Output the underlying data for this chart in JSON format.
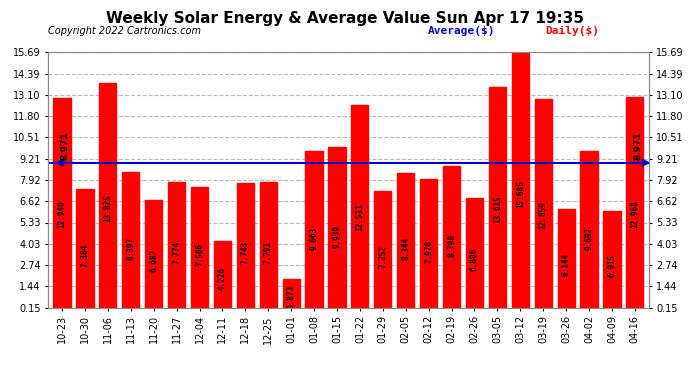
{
  "title": "Weekly Solar Energy & Average Value Sun Apr 17 19:35",
  "copyright": "Copyright 2022 Cartronics.com",
  "categories": [
    "10-23",
    "10-30",
    "11-06",
    "11-13",
    "11-20",
    "11-27",
    "12-04",
    "12-11",
    "12-18",
    "12-25",
    "01-01",
    "01-08",
    "01-15",
    "01-22",
    "01-29",
    "02-05",
    "02-12",
    "02-19",
    "02-26",
    "03-05",
    "03-12",
    "03-19",
    "03-26",
    "04-02",
    "04-09",
    "04-16"
  ],
  "values": [
    12.94,
    7.384,
    13.825,
    8.397,
    6.687,
    7.774,
    7.506,
    4.226,
    7.743,
    7.791,
    1.873,
    9.663,
    9.939,
    12.511,
    7.252,
    8.344,
    7.978,
    8.79,
    6.806,
    13.615,
    15.685,
    12.859,
    6.144,
    9.692,
    6.015,
    12.968
  ],
  "average": 8.971,
  "bar_color": "#ff0000",
  "average_line_color": "#0000cc",
  "legend_average_label": "Average($)",
  "legend_daily_label": "Daily($)",
  "ylim_min": 0.15,
  "ylim_max": 15.69,
  "yticks": [
    0.15,
    1.44,
    2.74,
    4.03,
    5.33,
    6.62,
    7.92,
    9.21,
    10.51,
    11.8,
    13.1,
    14.39,
    15.69
  ],
  "background_color": "#ffffff",
  "plot_bg_color": "#ffffff",
  "title_fontsize": 11,
  "copyright_fontsize": 7,
  "tick_fontsize": 7,
  "bar_value_fontsize": 5.5,
  "grid_color": "#bbbbbb",
  "grid_linestyle": "--"
}
